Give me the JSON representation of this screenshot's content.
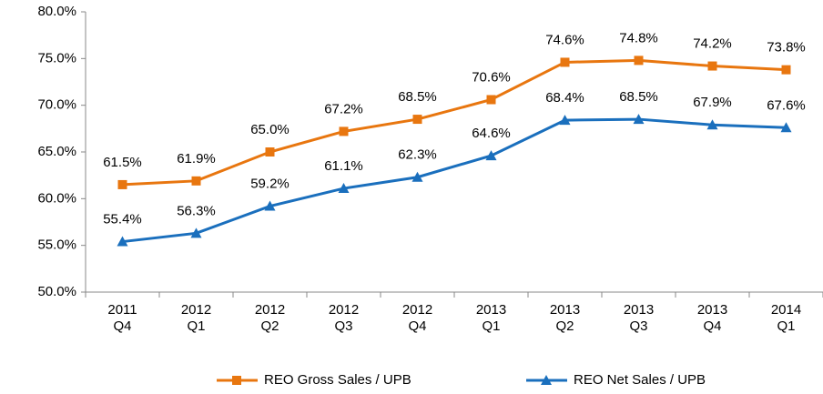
{
  "chart_data": {
    "type": "line",
    "categories": [
      "2011\nQ4",
      "2012\nQ1",
      "2012\nQ2",
      "2012\nQ3",
      "2012\nQ4",
      "2013\nQ1",
      "2013\nQ2",
      "2013\nQ3",
      "2013\nQ4",
      "2014\nQ1"
    ],
    "series": [
      {
        "name": "REO Gross Sales / UPB",
        "color": "#e8760f",
        "marker": "square",
        "values": [
          61.5,
          61.9,
          65.0,
          67.2,
          68.5,
          70.6,
          74.6,
          74.8,
          74.2,
          73.8
        ],
        "value_labels": [
          "61.5%",
          "61.9%",
          "65.0%",
          "67.2%",
          "68.5%",
          "70.6%",
          "74.6%",
          "74.8%",
          "74.2%",
          "73.8%"
        ]
      },
      {
        "name": "REO Net Sales / UPB",
        "color": "#1a6fbd",
        "marker": "triangle",
        "values": [
          55.4,
          56.3,
          59.2,
          61.1,
          62.3,
          64.6,
          68.4,
          68.5,
          67.9,
          67.6
        ],
        "value_labels": [
          "55.4%",
          "56.3%",
          "59.2%",
          "61.1%",
          "62.3%",
          "64.6%",
          "68.4%",
          "68.5%",
          "67.9%",
          "67.6%"
        ]
      }
    ],
    "ylim": [
      50,
      80
    ],
    "yticks": [
      {
        "value": 50,
        "label": "50.0%"
      },
      {
        "value": 55,
        "label": "55.0%"
      },
      {
        "value": 60,
        "label": "60.0%"
      },
      {
        "value": 65,
        "label": "65.0%"
      },
      {
        "value": 70,
        "label": "70.0%"
      },
      {
        "value": 75,
        "label": "75.0%"
      },
      {
        "value": 80,
        "label": "80.0%"
      }
    ],
    "grid": false,
    "legend": "bottom"
  }
}
